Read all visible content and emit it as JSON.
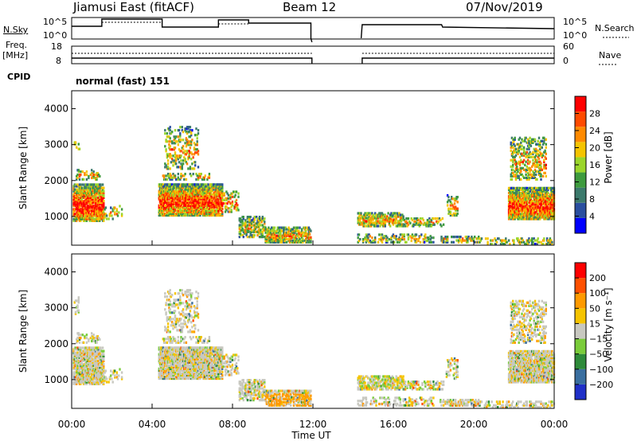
{
  "header": {
    "radar": "Jiamusi East (fitACF)",
    "beam": "Beam 12",
    "date": "07/Nov/2019"
  },
  "top_panels": {
    "nsky_label": "N.Sky",
    "nsky_ticks": [
      "10^5",
      "10^0"
    ],
    "nsearch_label": "N.Search",
    "nsearch_ticks": [
      "10^5",
      "10^0"
    ],
    "freq_label_1": "Freq.",
    "freq_label_2": "[MHz]",
    "freq_ticks": [
      "18",
      "8"
    ],
    "nave_label": "Nave",
    "nave_ticks": [
      "60",
      "0"
    ],
    "cpid_label": "CPID",
    "cpid_value": "normal (fast) 151"
  },
  "chart_data": [
    {
      "type": "heatmap",
      "name": "Power",
      "ylabel": "Slant Range [km]",
      "yticks": [
        "4000",
        "3000",
        "2000",
        "1000"
      ],
      "colorbar_label": "Power [dB]",
      "colorbar_ticks": [
        "28",
        "24",
        "20",
        "16",
        "12",
        "8",
        "4"
      ],
      "colors": [
        "#0000ff",
        "#2a4fa0",
        "#3c7a6c",
        "#3e9b3e",
        "#9bd62b",
        "#f5c400",
        "#ff8a00",
        "#ff4b00",
        "#ff0000"
      ]
    },
    {
      "type": "heatmap",
      "name": "Velocity",
      "ylabel": "Slant Range [km]",
      "yticks": [
        "4000",
        "3000",
        "2000",
        "1000"
      ],
      "colorbar_label": "Velocity [m s⁻¹]",
      "colorbar_ticks": [
        "200",
        "100",
        "50",
        "15",
        "−15",
        "−50",
        "−100",
        "−200"
      ],
      "colors": [
        "#2030c8",
        "#3a6fa0",
        "#2e8b3a",
        "#7acc3a",
        "#c8c8c0",
        "#f5c400",
        "#ff9a00",
        "#ff5000",
        "#ff0000"
      ]
    }
  ],
  "xaxis": {
    "ticks": [
      "00:00",
      "04:00",
      "08:00",
      "12:00",
      "16:00",
      "20:00",
      "00:00"
    ],
    "label": "Time UT"
  }
}
